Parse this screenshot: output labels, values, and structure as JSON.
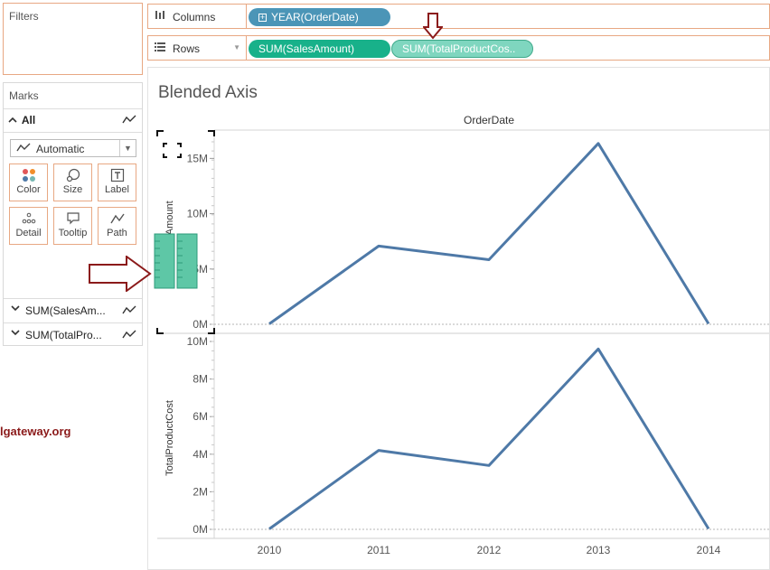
{
  "filters": {
    "title": "Filters"
  },
  "marks": {
    "title": "Marks",
    "all_label": "All",
    "mark_type": "Automatic",
    "buttons": [
      {
        "label": "Color",
        "icon": "color-dots-icon"
      },
      {
        "label": "Size",
        "icon": "size-circles-icon"
      },
      {
        "label": "Label",
        "icon": "text-label-icon"
      },
      {
        "label": "Detail",
        "icon": "detail-dots-icon"
      },
      {
        "label": "Tooltip",
        "icon": "speech-bubble-icon"
      },
      {
        "label": "Path",
        "icon": "path-line-icon"
      }
    ],
    "measures": [
      {
        "label": "SUM(SalesAm..."
      },
      {
        "label": "SUM(TotalPro..."
      }
    ]
  },
  "watermark": "lgateway.org",
  "columns_shelf": {
    "label": "Columns",
    "pills": [
      {
        "label": "YEAR(OrderDate)"
      }
    ]
  },
  "rows_shelf": {
    "label": "Rows",
    "pills": [
      {
        "label": "SUM(SalesAmount)"
      },
      {
        "label": "SUM(TotalProductCos.."
      }
    ]
  },
  "sheet": {
    "title": "Blended Axis",
    "header": "OrderDate"
  },
  "colors": {
    "line": "#4e79a7",
    "shelf_border": "#e8a883",
    "pill_blue": "#4b95b7",
    "pill_green": "#18b18a",
    "pill_light": "#7fd6bf",
    "annotation_arrow": "#8b1a1a"
  },
  "chart_data": [
    {
      "type": "line",
      "xlabel": "",
      "ylabel": "SalesAmount",
      "x": [
        "2010",
        "2011",
        "2012",
        "2013",
        "2014"
      ],
      "values": [
        43000,
        7075000,
        5842000,
        16351000,
        46000
      ],
      "ylim": [
        0,
        16500000
      ],
      "yticks": [
        0,
        5000000,
        10000000,
        15000000
      ],
      "ytick_labels": [
        "0M",
        "5M",
        "10M",
        "15M"
      ],
      "grid": false
    },
    {
      "type": "line",
      "xlabel": "",
      "ylabel": "TotalProductCost",
      "x": [
        "2010",
        "2011",
        "2012",
        "2013",
        "2014"
      ],
      "x_tick_labels": [
        "2010",
        "2011",
        "2012",
        "2013",
        "2014"
      ],
      "values": [
        25000,
        4200000,
        3400000,
        9600000,
        27000
      ],
      "ylim": [
        0,
        10000000
      ],
      "yticks": [
        0,
        2000000,
        4000000,
        6000000,
        8000000,
        10000000
      ],
      "ytick_labels": [
        "0M",
        "2M",
        "4M",
        "6M",
        "8M",
        "10M"
      ],
      "grid": false
    }
  ]
}
